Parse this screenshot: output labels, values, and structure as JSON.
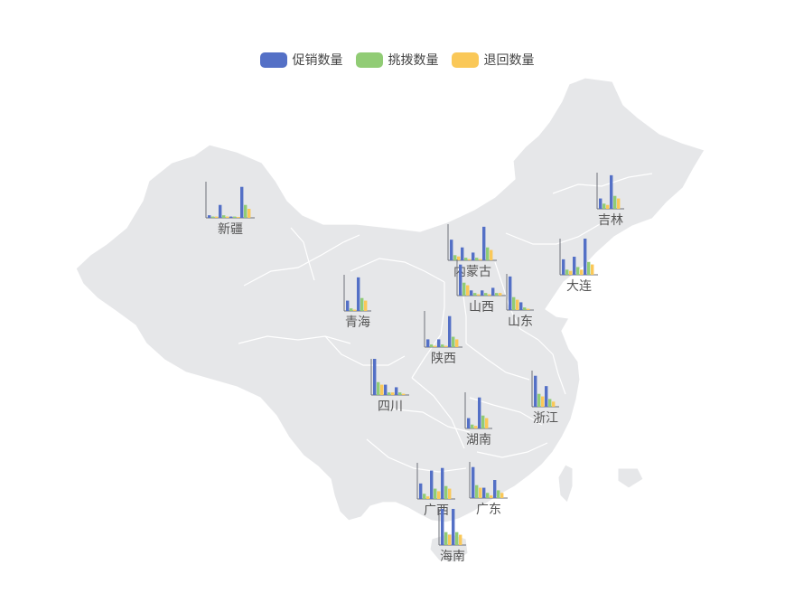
{
  "legend": {
    "items": [
      {
        "label": "促销数量",
        "color": "#5470c6"
      },
      {
        "label": "挑拨数量",
        "color": "#91cc75"
      },
      {
        "label": "退回数量",
        "color": "#fac858"
      }
    ]
  },
  "colors": {
    "map_fill": "#e6e7e9",
    "map_border": "#ffffff",
    "axis": "#6e7079",
    "label": "#555555"
  },
  "chart_data": {
    "type": "bar",
    "series_names": [
      "促销数量",
      "挑拨数量",
      "退回数量"
    ],
    "regions": [
      {
        "name": "新疆",
        "values": [
          [
            1,
            0.5,
            0.5
          ],
          [
            5,
            1,
            0.5
          ],
          [
            0.5,
            0.5,
            0.3
          ],
          [
            12,
            5,
            3.5
          ]
        ]
      },
      {
        "name": "吉林",
        "values": [
          [
            4,
            2,
            1.5
          ],
          [
            13,
            5,
            4
          ]
        ]
      },
      {
        "name": "内蒙古",
        "values": [
          [
            8,
            2,
            1.5
          ],
          [
            5,
            1,
            0.5
          ],
          [
            3,
            1,
            0.5
          ],
          [
            13,
            5,
            4
          ]
        ]
      },
      {
        "name": "大连",
        "values": [
          [
            6,
            2,
            1.5
          ],
          [
            7,
            3,
            2
          ],
          [
            14,
            5,
            4
          ]
        ]
      },
      {
        "name": "山西",
        "values": [
          [
            12,
            5,
            4
          ],
          [
            2,
            1,
            0.5
          ],
          [
            2,
            1,
            0.5
          ],
          [
            3,
            1,
            1
          ]
        ]
      },
      {
        "name": "山东",
        "values": [
          [
            13,
            5,
            4
          ],
          [
            3,
            1,
            0.5
          ]
        ]
      },
      {
        "name": "青海",
        "values": [
          [
            4,
            1,
            0.5
          ],
          [
            13,
            5,
            4
          ]
        ]
      },
      {
        "name": "陕西",
        "values": [
          [
            3,
            1,
            0.5
          ],
          [
            3,
            1,
            0.5
          ],
          [
            12,
            4,
            3
          ]
        ]
      },
      {
        "name": "四川",
        "values": [
          [
            14,
            5,
            4
          ],
          [
            4,
            1,
            1
          ],
          [
            3,
            1,
            0.5
          ]
        ]
      },
      {
        "name": "浙江",
        "values": [
          [
            12,
            5,
            4
          ],
          [
            8,
            3,
            2
          ]
        ]
      },
      {
        "name": "湖南",
        "values": [
          [
            4,
            1.5,
            1
          ],
          [
            12,
            5,
            4
          ]
        ]
      },
      {
        "name": "广西",
        "values": [
          [
            6,
            2,
            1
          ],
          [
            11,
            4,
            3
          ],
          [
            12,
            5,
            4
          ]
        ]
      },
      {
        "name": "广东",
        "values": [
          [
            12,
            5,
            4
          ],
          [
            4,
            2,
            1
          ],
          [
            7,
            3,
            2
          ]
        ]
      },
      {
        "name": "海南",
        "values": [
          [
            14,
            5,
            4
          ],
          [
            14,
            5,
            4
          ]
        ]
      }
    ]
  }
}
